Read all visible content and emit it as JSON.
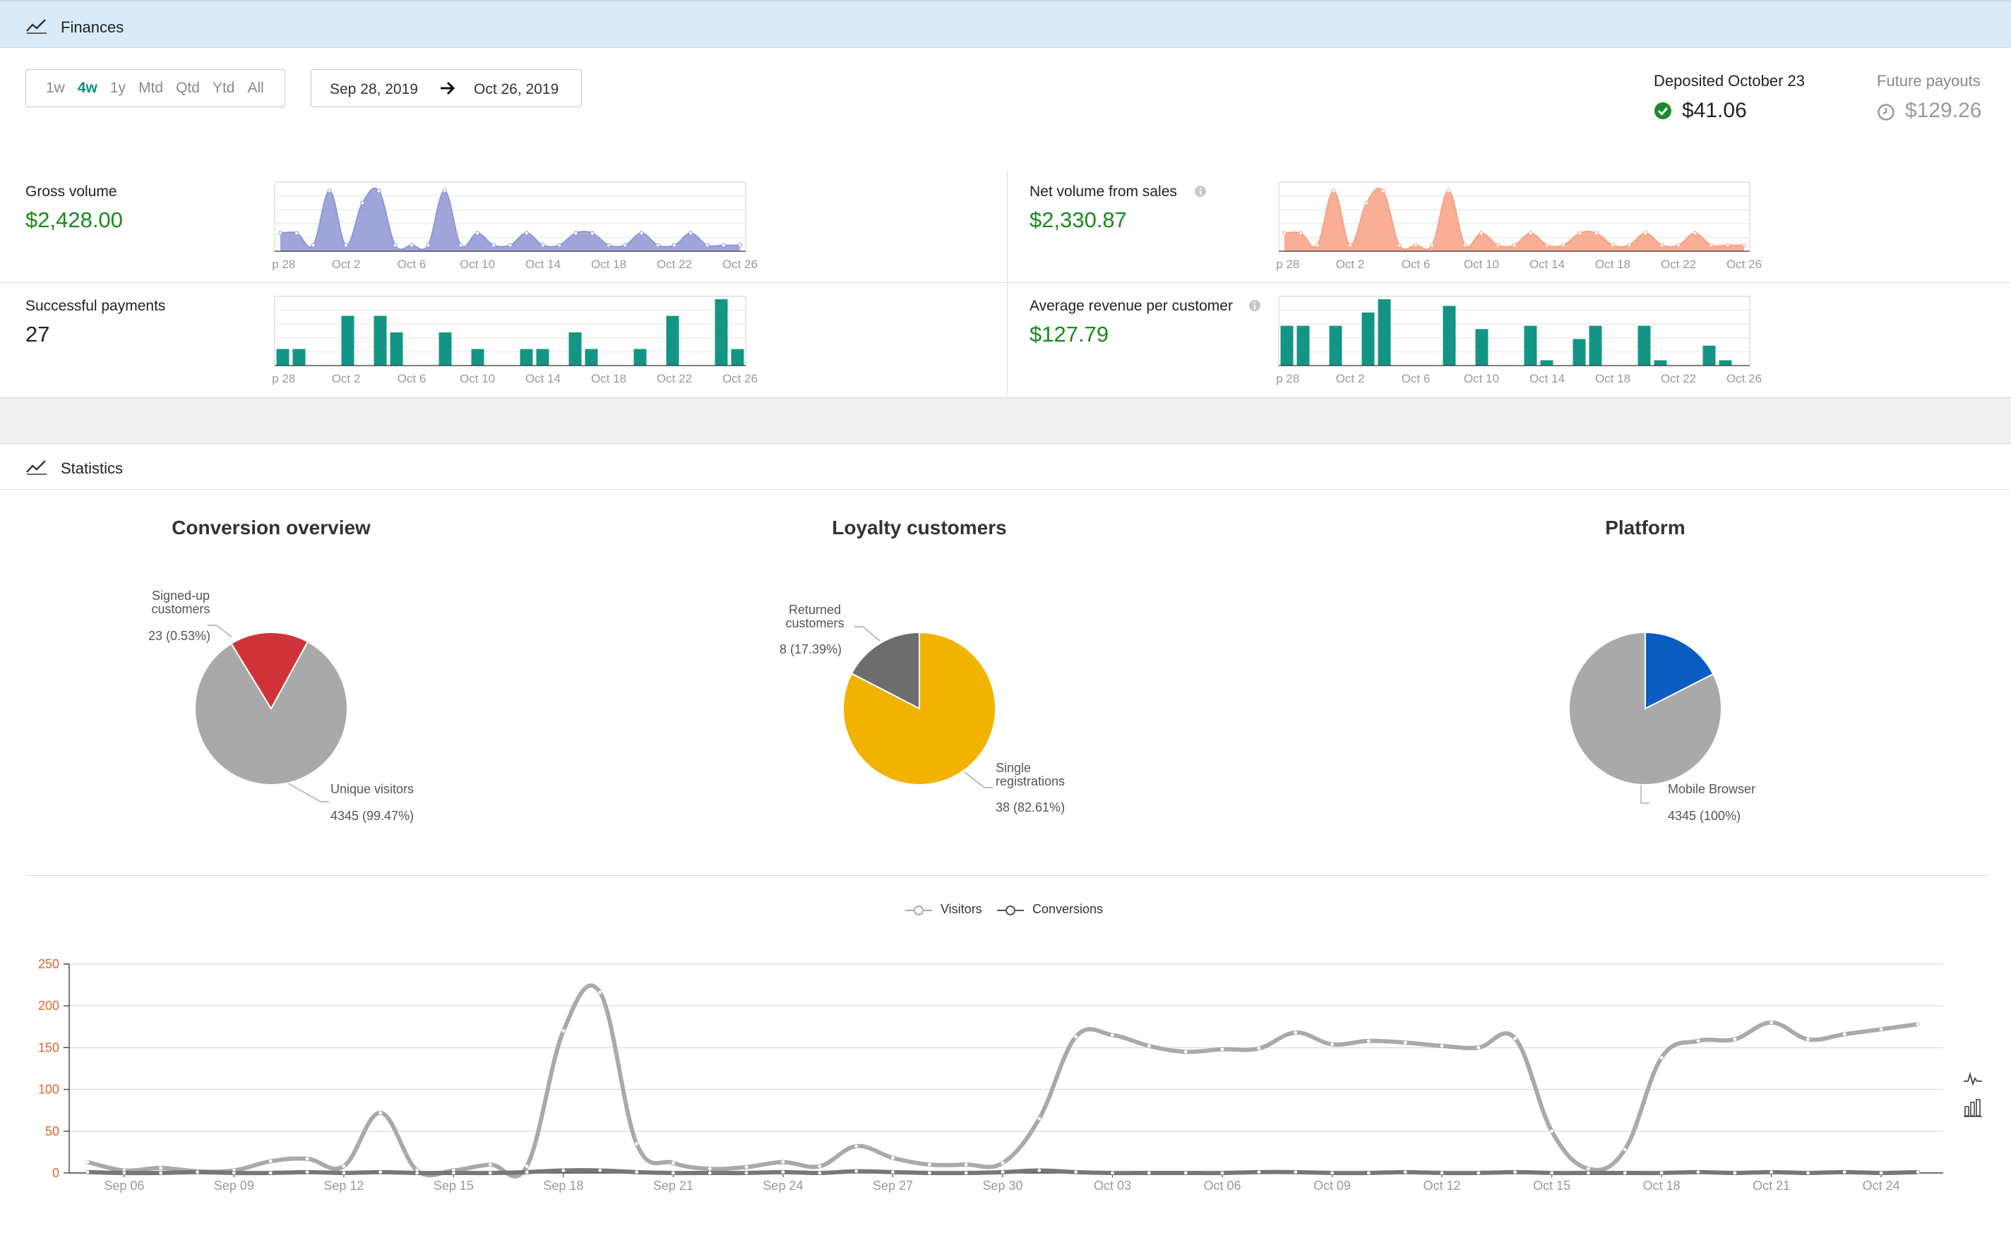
{
  "finances": {
    "title": "Finances",
    "icon": "trend-line-icon",
    "periods": [
      "1w",
      "4w",
      "1y",
      "Mtd",
      "Qtd",
      "Ytd",
      "All"
    ],
    "active_period": "4w",
    "date_from": "Sep 28, 2019",
    "date_to": "Oct 26, 2019",
    "deposited_label": "Deposited October 23",
    "deposited_amount": "$41.06",
    "future_label": "Future payouts",
    "future_amount": "$129.26",
    "colors": {
      "purple": "#8f97d4",
      "orange": "#f7a184",
      "teal": "#139585",
      "green": "#188a1c"
    },
    "spark_x_labels": [
      "ep 28",
      "Oct 2",
      "Oct 6",
      "Oct 10",
      "Oct 14",
      "Oct 18",
      "Oct 22",
      "Oct 26"
    ],
    "metrics": [
      {
        "label": "Gross volume",
        "value": "$2,428.00"
      },
      {
        "label": "Net volume from sales",
        "value": "$2,330.87"
      },
      {
        "label": "Successful payments",
        "value": "27"
      },
      {
        "label": "Average revenue per customer",
        "value": "$127.79"
      }
    ]
  },
  "statistics": {
    "title": "Statistics",
    "icon": "trend-line-icon",
    "legend": [
      "Visitors",
      "Conversions"
    ],
    "side_icons": [
      "line-chart-icon",
      "bar-chart-icon"
    ]
  },
  "chart_data": [
    {
      "type": "area",
      "title": "Gross volume",
      "x": [
        "Sep 28",
        "Sep 29",
        "Sep 30",
        "Oct 1",
        "Oct 2",
        "Oct 3",
        "Oct 4",
        "Oct 5",
        "Oct 6",
        "Oct 7",
        "Oct 8",
        "Oct 9",
        "Oct 10",
        "Oct 11",
        "Oct 12",
        "Oct 13",
        "Oct 14",
        "Oct 15",
        "Oct 16",
        "Oct 17",
        "Oct 18",
        "Oct 19",
        "Oct 20",
        "Oct 21",
        "Oct 22",
        "Oct 23",
        "Oct 24",
        "Oct 25",
        "Oct 26"
      ],
      "values": [
        0.3,
        0.3,
        0.1,
        1.0,
        0.1,
        0.8,
        1.0,
        0.1,
        0.1,
        0.1,
        1.0,
        0.1,
        0.3,
        0.1,
        0.1,
        0.3,
        0.1,
        0.1,
        0.3,
        0.3,
        0.1,
        0.1,
        0.3,
        0.1,
        0.1,
        0.3,
        0.1,
        0.1,
        0.1
      ],
      "ylim": [
        0,
        1.1
      ]
    },
    {
      "type": "area",
      "title": "Net volume from sales",
      "x": [
        "Sep 28",
        "Sep 29",
        "Sep 30",
        "Oct 1",
        "Oct 2",
        "Oct 3",
        "Oct 4",
        "Oct 5",
        "Oct 6",
        "Oct 7",
        "Oct 8",
        "Oct 9",
        "Oct 10",
        "Oct 11",
        "Oct 12",
        "Oct 13",
        "Oct 14",
        "Oct 15",
        "Oct 16",
        "Oct 17",
        "Oct 18",
        "Oct 19",
        "Oct 20",
        "Oct 21",
        "Oct 22",
        "Oct 23",
        "Oct 24",
        "Oct 25",
        "Oct 26"
      ],
      "values": [
        0.3,
        0.3,
        0.1,
        1.0,
        0.1,
        0.8,
        1.0,
        0.1,
        0.1,
        0.1,
        1.0,
        0.1,
        0.3,
        0.1,
        0.1,
        0.3,
        0.1,
        0.1,
        0.3,
        0.3,
        0.1,
        0.1,
        0.3,
        0.1,
        0.1,
        0.3,
        0.1,
        0.1,
        0.1
      ],
      "ylim": [
        0,
        1.1
      ]
    },
    {
      "type": "bar",
      "title": "Successful payments",
      "x": [
        "Sep 28",
        "Sep 29",
        "Sep 30",
        "Oct 1",
        "Oct 2",
        "Oct 3",
        "Oct 4",
        "Oct 5",
        "Oct 6",
        "Oct 7",
        "Oct 8",
        "Oct 9",
        "Oct 10",
        "Oct 11",
        "Oct 12",
        "Oct 13",
        "Oct 14",
        "Oct 15",
        "Oct 16",
        "Oct 17",
        "Oct 18",
        "Oct 19",
        "Oct 20",
        "Oct 21",
        "Oct 22",
        "Oct 23",
        "Oct 24",
        "Oct 25",
        "Oct 26"
      ],
      "values": [
        1,
        1,
        0,
        0,
        3,
        0,
        3,
        2,
        0,
        0,
        2,
        0,
        1,
        0,
        0,
        1,
        1,
        0,
        2,
        1,
        0,
        0,
        1,
        0,
        3,
        0,
        0,
        4,
        1
      ],
      "ylim": [
        0,
        4
      ]
    },
    {
      "type": "bar",
      "title": "Average revenue per customer",
      "x": [
        "Sep 28",
        "Sep 29",
        "Sep 30",
        "Oct 1",
        "Oct 2",
        "Oct 3",
        "Oct 4",
        "Oct 5",
        "Oct 6",
        "Oct 7",
        "Oct 8",
        "Oct 9",
        "Oct 10",
        "Oct 11",
        "Oct 12",
        "Oct 13",
        "Oct 14",
        "Oct 15",
        "Oct 16",
        "Oct 17",
        "Oct 18",
        "Oct 19",
        "Oct 20",
        "Oct 21",
        "Oct 22",
        "Oct 23",
        "Oct 24",
        "Oct 25",
        "Oct 26"
      ],
      "values": [
        0.6,
        0.6,
        0,
        0.6,
        0,
        0.8,
        1.0,
        0,
        0,
        0,
        0.9,
        0,
        0.55,
        0,
        0,
        0.6,
        0.08,
        0,
        0.4,
        0.6,
        0,
        0,
        0.6,
        0.08,
        0,
        0,
        0.3,
        0.08,
        0
      ],
      "ylim": [
        0,
        1
      ]
    },
    {
      "type": "pie",
      "title": "Conversion overview",
      "slices": [
        {
          "label": "Signed-up customers",
          "value": 23,
          "display": "23 (0.53%)",
          "color": "#d0323a"
        },
        {
          "label": "Unique visitors",
          "value": 4345,
          "display": "4345 (99.47%)",
          "color": "#a9a9a9"
        }
      ]
    },
    {
      "type": "pie",
      "title": "Loyalty customers",
      "slices": [
        {
          "label": "Returned customers",
          "value": 8,
          "display": "8 (17.39%)",
          "color": "#6d6d6d"
        },
        {
          "label": "Single registrations",
          "value": 38,
          "display": "38 (82.61%)",
          "color": "#f2b300"
        }
      ]
    },
    {
      "type": "pie",
      "title": "Platform",
      "slices": [
        {
          "label": "Mobile Browser",
          "value": 4345,
          "display": "4345 (100%)",
          "color": "#a9a9a9"
        }
      ]
    },
    {
      "type": "line",
      "x": [
        "Sep 05",
        "Sep 06",
        "Sep 07",
        "Sep 08",
        "Sep 09",
        "Sep 10",
        "Sep 11",
        "Sep 12",
        "Sep 13",
        "Sep 14",
        "Sep 15",
        "Sep 16",
        "Sep 17",
        "Sep 18",
        "Sep 19",
        "Sep 20",
        "Sep 21",
        "Sep 22",
        "Sep 23",
        "Sep 24",
        "Sep 25",
        "Sep 26",
        "Sep 27",
        "Sep 28",
        "Sep 29",
        "Sep 30",
        "Oct 01",
        "Oct 02",
        "Oct 03",
        "Oct 04",
        "Oct 05",
        "Oct 06",
        "Oct 07",
        "Oct 08",
        "Oct 09",
        "Oct 10",
        "Oct 11",
        "Oct 12",
        "Oct 13",
        "Oct 14",
        "Oct 15",
        "Oct 16",
        "Oct 17",
        "Oct 18",
        "Oct 19",
        "Oct 20",
        "Oct 21",
        "Oct 22",
        "Oct 23",
        "Oct 24",
        "Oct 25"
      ],
      "x_tick_labels": [
        "Sep 06",
        "Sep 09",
        "Sep 12",
        "Sep 15",
        "Sep 18",
        "Sep 21",
        "Sep 24",
        "Sep 27",
        "Sep 30",
        "Oct 03",
        "Oct 06",
        "Oct 09",
        "Oct 12",
        "Oct 15",
        "Oct 18",
        "Oct 21",
        "Oct 24"
      ],
      "y_ticks": [
        "0",
        "50",
        "100",
        "150",
        "200",
        "250"
      ],
      "ylim": [
        0,
        250
      ],
      "series": [
        {
          "name": "Visitors",
          "color": "#a9a9a9",
          "values": [
            13,
            3,
            6,
            2,
            3,
            14,
            17,
            8,
            72,
            3,
            3,
            10,
            8,
            170,
            216,
            35,
            12,
            5,
            7,
            13,
            8,
            32,
            18,
            10,
            10,
            12,
            65,
            163,
            165,
            152,
            145,
            148,
            149,
            168,
            154,
            158,
            156,
            152,
            150,
            161,
            50,
            5,
            28,
            138,
            158,
            160,
            180,
            160,
            166,
            172,
            178
          ]
        },
        {
          "name": "Conversions",
          "color": "#777777",
          "values": [
            1,
            0,
            0,
            1,
            0,
            0,
            1,
            0,
            1,
            0,
            0,
            0,
            1,
            3,
            3,
            1,
            0,
            0,
            0,
            1,
            0,
            2,
            1,
            0,
            0,
            1,
            3,
            1,
            0,
            0,
            0,
            0,
            1,
            1,
            0,
            0,
            1,
            0,
            0,
            1,
            0,
            0,
            0,
            0,
            1,
            0,
            1,
            0,
            1,
            0,
            1
          ]
        }
      ]
    }
  ]
}
